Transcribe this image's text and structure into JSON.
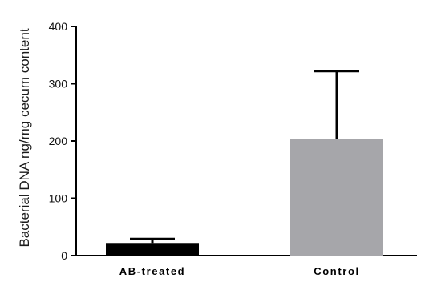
{
  "chart_data": {
    "type": "bar",
    "title": "",
    "xlabel": "",
    "ylabel": "Bacterial DNA ng/mg cecum content",
    "ylim": [
      0,
      400
    ],
    "yticks": [
      0,
      100,
      200,
      300,
      400
    ],
    "categories": [
      "AB-treated",
      "Control"
    ],
    "values": [
      22,
      204
    ],
    "error_upper": [
      29,
      322
    ],
    "colors": [
      "#000000",
      "#a6a6aa"
    ],
    "grid": false,
    "legend": "none"
  }
}
